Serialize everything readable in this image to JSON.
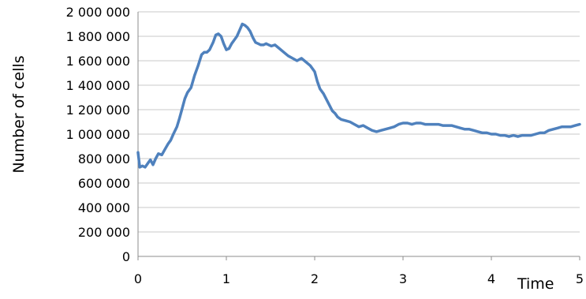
{
  "chart_data": {
    "type": "line",
    "title": "",
    "xlabel": "Time",
    "ylabel": "Number of cells",
    "xlim": [
      0,
      5
    ],
    "ylim": [
      0,
      2000000
    ],
    "x_ticks": [
      0,
      1,
      2,
      3,
      4,
      5
    ],
    "x_tick_labels": [
      "0",
      "1",
      "2",
      "3",
      "4",
      "5"
    ],
    "y_ticks": [
      0,
      200000,
      400000,
      600000,
      800000,
      1000000,
      1200000,
      1400000,
      1600000,
      1800000,
      2000000
    ],
    "y_tick_labels": [
      "0",
      "200 000",
      "400 000",
      "600 000",
      "800 000",
      "1 000 000",
      "1 200 000",
      "1 400 000",
      "1 600 000",
      "1 800 000",
      "2 000 000"
    ],
    "grid": true,
    "legend": "none",
    "series": [
      {
        "color": "#4f81bd",
        "x": [
          0.0,
          0.02,
          0.05,
          0.08,
          0.11,
          0.14,
          0.17,
          0.2,
          0.23,
          0.27,
          0.3,
          0.34,
          0.37,
          0.4,
          0.44,
          0.47,
          0.5,
          0.53,
          0.56,
          0.6,
          0.64,
          0.68,
          0.72,
          0.75,
          0.78,
          0.81,
          0.85,
          0.88,
          0.91,
          0.94,
          0.97,
          1.0,
          1.03,
          1.06,
          1.09,
          1.12,
          1.15,
          1.18,
          1.21,
          1.24,
          1.27,
          1.3,
          1.33,
          1.36,
          1.39,
          1.42,
          1.45,
          1.48,
          1.51,
          1.55,
          1.6,
          1.65,
          1.7,
          1.75,
          1.8,
          1.85,
          1.9,
          1.95,
          2.0,
          2.03,
          2.06,
          2.1,
          2.15,
          2.2,
          2.23,
          2.26,
          2.3,
          2.35,
          2.4,
          2.45,
          2.5,
          2.55,
          2.6,
          2.65,
          2.7,
          2.75,
          2.8,
          2.85,
          2.9,
          2.95,
          3.0,
          3.05,
          3.1,
          3.15,
          3.2,
          3.25,
          3.3,
          3.35,
          3.4,
          3.45,
          3.5,
          3.55,
          3.6,
          3.65,
          3.7,
          3.75,
          3.8,
          3.85,
          3.9,
          3.95,
          4.0,
          4.05,
          4.1,
          4.15,
          4.2,
          4.25,
          4.3,
          4.35,
          4.4,
          4.45,
          4.5,
          4.55,
          4.6,
          4.65,
          4.7,
          4.75,
          4.8,
          4.85,
          4.9,
          4.95,
          5.0
        ],
        "values": [
          850000,
          730000,
          740000,
          730000,
          760000,
          790000,
          750000,
          800000,
          840000,
          830000,
          870000,
          920000,
          950000,
          1000000,
          1060000,
          1130000,
          1210000,
          1290000,
          1340000,
          1380000,
          1480000,
          1560000,
          1650000,
          1670000,
          1670000,
          1690000,
          1750000,
          1810000,
          1820000,
          1800000,
          1740000,
          1690000,
          1700000,
          1740000,
          1770000,
          1800000,
          1850000,
          1900000,
          1890000,
          1870000,
          1840000,
          1790000,
          1750000,
          1740000,
          1730000,
          1730000,
          1740000,
          1730000,
          1720000,
          1730000,
          1700000,
          1670000,
          1640000,
          1620000,
          1600000,
          1620000,
          1590000,
          1560000,
          1510000,
          1430000,
          1370000,
          1330000,
          1260000,
          1190000,
          1170000,
          1140000,
          1120000,
          1110000,
          1100000,
          1080000,
          1060000,
          1070000,
          1050000,
          1030000,
          1020000,
          1030000,
          1040000,
          1050000,
          1060000,
          1080000,
          1090000,
          1090000,
          1080000,
          1090000,
          1090000,
          1080000,
          1080000,
          1080000,
          1080000,
          1070000,
          1070000,
          1070000,
          1060000,
          1050000,
          1040000,
          1040000,
          1030000,
          1020000,
          1010000,
          1010000,
          1000000,
          1000000,
          990000,
          990000,
          980000,
          990000,
          980000,
          990000,
          990000,
          990000,
          1000000,
          1010000,
          1010000,
          1030000,
          1040000,
          1050000,
          1060000,
          1060000,
          1060000,
          1070000,
          1080000
        ],
        "values_note": ""
      }
    ]
  }
}
